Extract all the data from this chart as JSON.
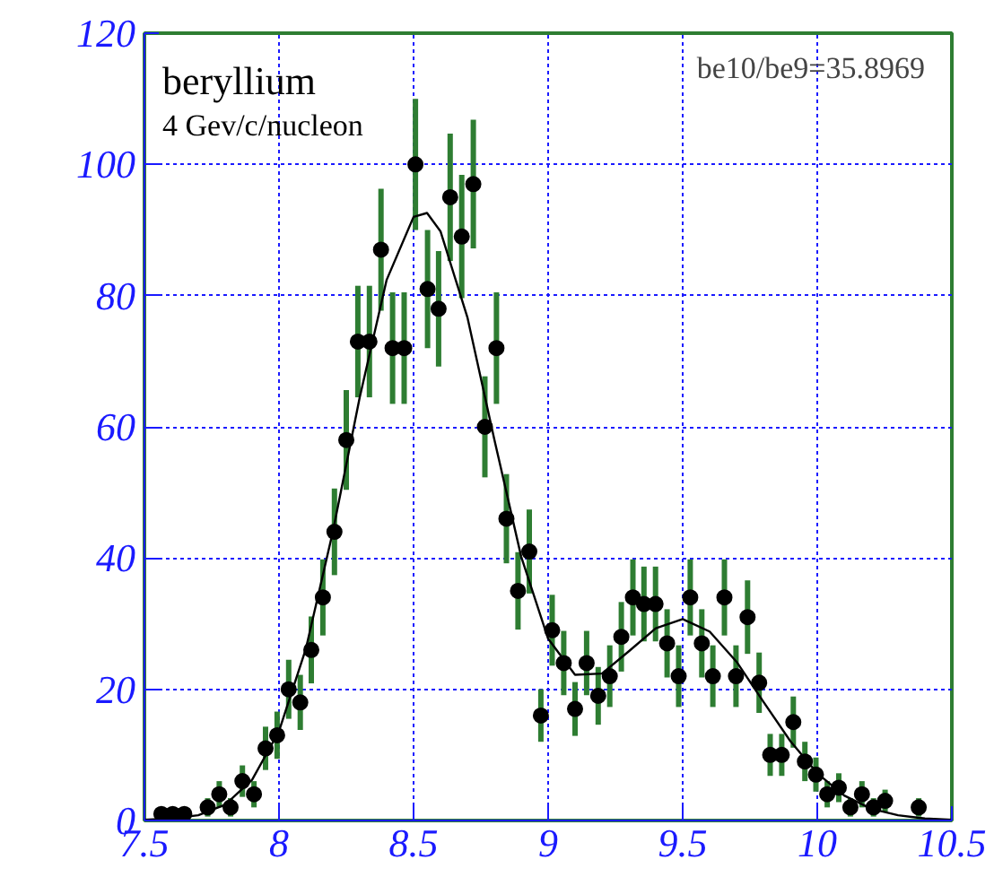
{
  "chart_data": {
    "type": "scatter",
    "title": "beryllium",
    "subtitle": "4  Gev/c/nucleon",
    "annotations": [
      "be10/be9=35.8969"
    ],
    "xlim": [
      7.5,
      10.5
    ],
    "ylim": [
      0,
      120
    ],
    "xticks": [
      7.5,
      8,
      8.5,
      9,
      9.5,
      10,
      10.5
    ],
    "yticks": [
      0,
      20,
      40,
      60,
      80,
      100,
      120
    ],
    "grid": true,
    "marker": "circle",
    "series": [
      {
        "color": "#000000",
        "x": [
          7.563,
          7.605,
          7.648,
          7.735,
          7.778,
          7.82,
          7.864,
          7.907,
          7.95,
          7.993,
          8.036,
          8.079,
          8.12,
          8.163,
          8.206,
          8.25,
          8.293,
          8.336,
          8.379,
          8.422,
          8.465,
          8.507,
          8.552,
          8.593,
          8.636,
          8.679,
          8.722,
          8.765,
          8.808,
          8.845,
          8.888,
          8.93,
          8.973,
          9.015,
          9.058,
          9.1,
          9.143,
          9.186,
          9.229,
          9.272,
          9.315,
          9.356,
          9.399,
          9.442,
          9.485,
          9.528,
          9.571,
          9.612,
          9.655,
          9.698,
          9.741,
          9.784,
          9.825,
          9.868,
          9.911,
          9.954,
          9.995,
          10.037,
          10.08,
          10.123,
          10.166,
          10.209,
          10.252,
          10.377
        ],
        "values": [
          1,
          1,
          1,
          2,
          4,
          2,
          6,
          4,
          11,
          13,
          20,
          18,
          26,
          34,
          44,
          58,
          73,
          73,
          87,
          72,
          72,
          100,
          81,
          78,
          95,
          89,
          97,
          60,
          72,
          46,
          35,
          41,
          16,
          29,
          24,
          17,
          24,
          19,
          22,
          28,
          34,
          33,
          33,
          27,
          22,
          34,
          27,
          22,
          34,
          22,
          31,
          21,
          10,
          10,
          15,
          9,
          7,
          4,
          5,
          2,
          4,
          2,
          3,
          2
        ],
        "errors": [
          1,
          1,
          1,
          1.4,
          2,
          1.4,
          2.4,
          2,
          3.3,
          3.6,
          4.5,
          4.2,
          5.1,
          5.8,
          6.6,
          7.6,
          8.5,
          8.5,
          9.3,
          8.5,
          8.5,
          10,
          9,
          8.8,
          9.7,
          9.4,
          9.8,
          7.7,
          8.5,
          6.8,
          5.9,
          6.4,
          4,
          5.4,
          4.9,
          4.1,
          4.9,
          4.4,
          4.7,
          5.3,
          5.8,
          5.7,
          5.7,
          5.2,
          4.7,
          5.8,
          5.2,
          4.7,
          5.8,
          4.7,
          5.6,
          4.6,
          3.2,
          3.2,
          3.9,
          3,
          2.6,
          2,
          2.2,
          1.4,
          2,
          1.4,
          1.7,
          1.4
        ]
      },
      {
        "type": "line",
        "color": "#000000",
        "marker": "none",
        "x": [
          7.5,
          7.6,
          7.7,
          7.8,
          7.9,
          8.0,
          8.1,
          8.2,
          8.3,
          8.4,
          8.5,
          8.55,
          8.6,
          8.7,
          8.8,
          8.9,
          9.0,
          9.1,
          9.2,
          9.3,
          9.4,
          9.5,
          9.6,
          9.7,
          9.8,
          9.9,
          10.0,
          10.1,
          10.2,
          10.3,
          10.4,
          10.5
        ],
        "values": [
          0.1,
          0.3,
          0.8,
          2.4,
          6.2,
          13.6,
          26.2,
          44.0,
          64.5,
          82.4,
          92.0,
          92.6,
          89.8,
          76.7,
          58.1,
          40.2,
          27.7,
          22.2,
          22.4,
          25.8,
          29.3,
          30.7,
          28.8,
          24.2,
          18.1,
          12.1,
          7.2,
          3.8,
          1.8,
          0.8,
          0.3,
          0.1
        ]
      }
    ]
  }
}
